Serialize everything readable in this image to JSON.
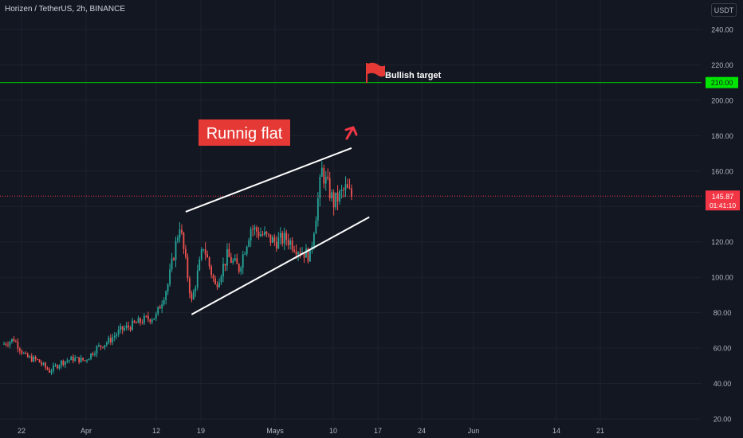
{
  "header": {
    "symbol_title": "Horizen / TetherUS, 2h, BINANCE",
    "currency_label": "USDT"
  },
  "colors": {
    "background": "#131722",
    "grid": "#1e222d",
    "axis_text": "#b2b5be",
    "candle_up": "#26a69a",
    "candle_down": "#ef5350",
    "target_line": "#00c000",
    "target_badge": "#00e600",
    "price_badge": "#f23645",
    "trend_lines": "#ffffff",
    "annotation_box": "#e53935",
    "arrow": "#f23645"
  },
  "price_axis": {
    "ticks": [
      "240.00",
      "220.00",
      "200.00",
      "180.00",
      "160.00",
      "140.00",
      "120.00",
      "100.00",
      "80.00",
      "60.00",
      "40.00",
      "20.00"
    ],
    "current_price": "145.87",
    "countdown": "01:41:10",
    "target_price": "210.00"
  },
  "time_axis": {
    "ticks": [
      "22",
      "Apr",
      "12",
      "19",
      "Mays",
      "10",
      "17",
      "24",
      "Jun",
      "14",
      "21"
    ]
  },
  "annotations": {
    "pattern_label": "Runnig flat",
    "target_label": "Bullish target",
    "flag_icon": "red-flag-icon",
    "arrow_icon": "up-arrow-icon"
  },
  "chart_data": {
    "type": "candlestick",
    "ylim": [
      20,
      240
    ],
    "target_level": 210,
    "current_price": 145.87,
    "channel": {
      "upper": [
        {
          "date": "Apr 16",
          "price": 137
        },
        {
          "date": "May 14",
          "price": 173
        }
      ],
      "lower": [
        {
          "date": "Apr 17",
          "price": 79
        },
        {
          "date": "May 17",
          "price": 134
        }
      ]
    },
    "daily_closes": [
      {
        "date": "Mar 16",
        "close": 62
      },
      {
        "date": "Mar 18",
        "close": 65
      },
      {
        "date": "Mar 20",
        "close": 55
      },
      {
        "date": "Mar 22",
        "close": 53
      },
      {
        "date": "Mar 24",
        "close": 47
      },
      {
        "date": "Mar 26",
        "close": 52
      },
      {
        "date": "Mar 28",
        "close": 54
      },
      {
        "date": "Mar 30",
        "close": 53
      },
      {
        "date": "Apr 1",
        "close": 60
      },
      {
        "date": "Apr 3",
        "close": 64
      },
      {
        "date": "Apr 5",
        "close": 70
      },
      {
        "date": "Apr 7",
        "close": 73
      },
      {
        "date": "Apr 9",
        "close": 76
      },
      {
        "date": "Apr 11",
        "close": 78
      },
      {
        "date": "Apr 13",
        "close": 96
      },
      {
        "date": "Apr 15",
        "close": 130
      },
      {
        "date": "Apr 17",
        "close": 86
      },
      {
        "date": "Apr 19",
        "close": 118
      },
      {
        "date": "Apr 21",
        "close": 95
      },
      {
        "date": "Apr 23",
        "close": 112
      },
      {
        "date": "Apr 25",
        "close": 105
      },
      {
        "date": "Apr 27",
        "close": 128
      },
      {
        "date": "Apr 29",
        "close": 124
      },
      {
        "date": "May 1",
        "close": 120
      },
      {
        "date": "May 3",
        "close": 122
      },
      {
        "date": "May 5",
        "close": 116
      },
      {
        "date": "May 7",
        "close": 112
      },
      {
        "date": "May 9",
        "close": 160
      },
      {
        "date": "May 11",
        "close": 142
      },
      {
        "date": "May 13",
        "close": 150
      },
      {
        "date": "May 14",
        "close": 145.87
      }
    ]
  }
}
